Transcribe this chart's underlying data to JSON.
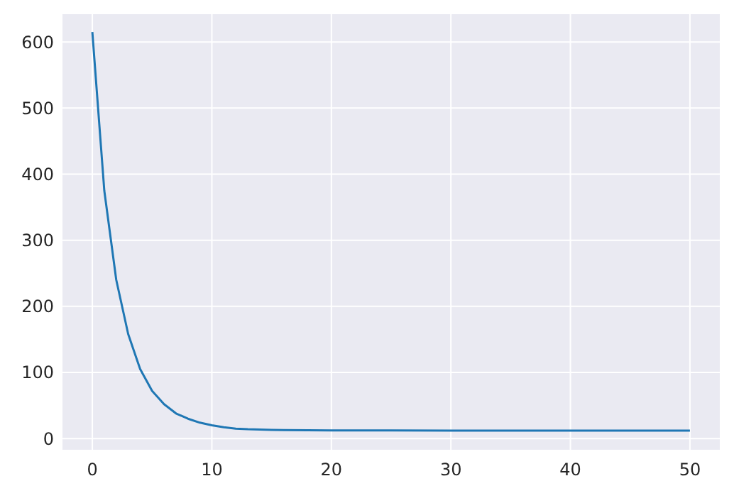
{
  "chart_data": {
    "type": "line",
    "x": [
      0,
      1,
      2,
      3,
      4,
      5,
      6,
      7,
      8,
      9,
      10,
      11,
      12,
      13,
      14,
      15,
      16,
      18,
      20,
      25,
      30,
      35,
      40,
      45,
      50
    ],
    "series": [
      {
        "color": "#1f77b4",
        "values": [
          615,
          375,
          240,
          158,
          105,
          72,
          52,
          38,
          30,
          24,
          20,
          17,
          15,
          14,
          13.5,
          13,
          12.8,
          12.5,
          12.3,
          12.2,
          12,
          12,
          12,
          12,
          12
        ]
      }
    ],
    "xlim": [
      -2.5,
      52.5
    ],
    "ylim": [
      -17,
      642
    ],
    "xticks": [
      0,
      10,
      20,
      30,
      40,
      50
    ],
    "yticks": [
      0,
      100,
      200,
      300,
      400,
      500,
      600
    ],
    "grid": true,
    "line_style": "solid"
  }
}
